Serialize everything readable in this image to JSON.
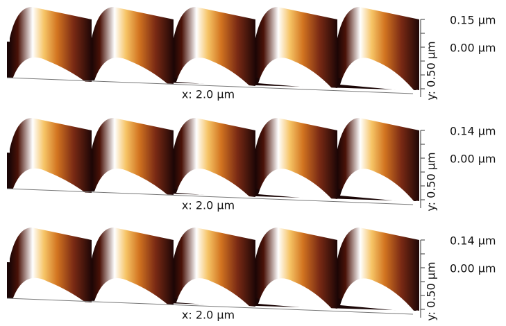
{
  "panels": [
    {
      "z_top": "0.15 µm",
      "z_zero": "0.00 µm",
      "y_axis": "y: 0.50 µm",
      "x_axis": "x: 2.0 µm"
    },
    {
      "z_top": "0.14 µm",
      "z_zero": "0.00 µm",
      "y_axis": "y: 0.50 µm",
      "x_axis": "x: 2.0 µm"
    },
    {
      "z_top": "0.14 µm",
      "z_zero": "0.00 µm",
      "y_axis": "y: 0.50 µm",
      "x_axis": "x: 2.0 µm"
    }
  ]
}
